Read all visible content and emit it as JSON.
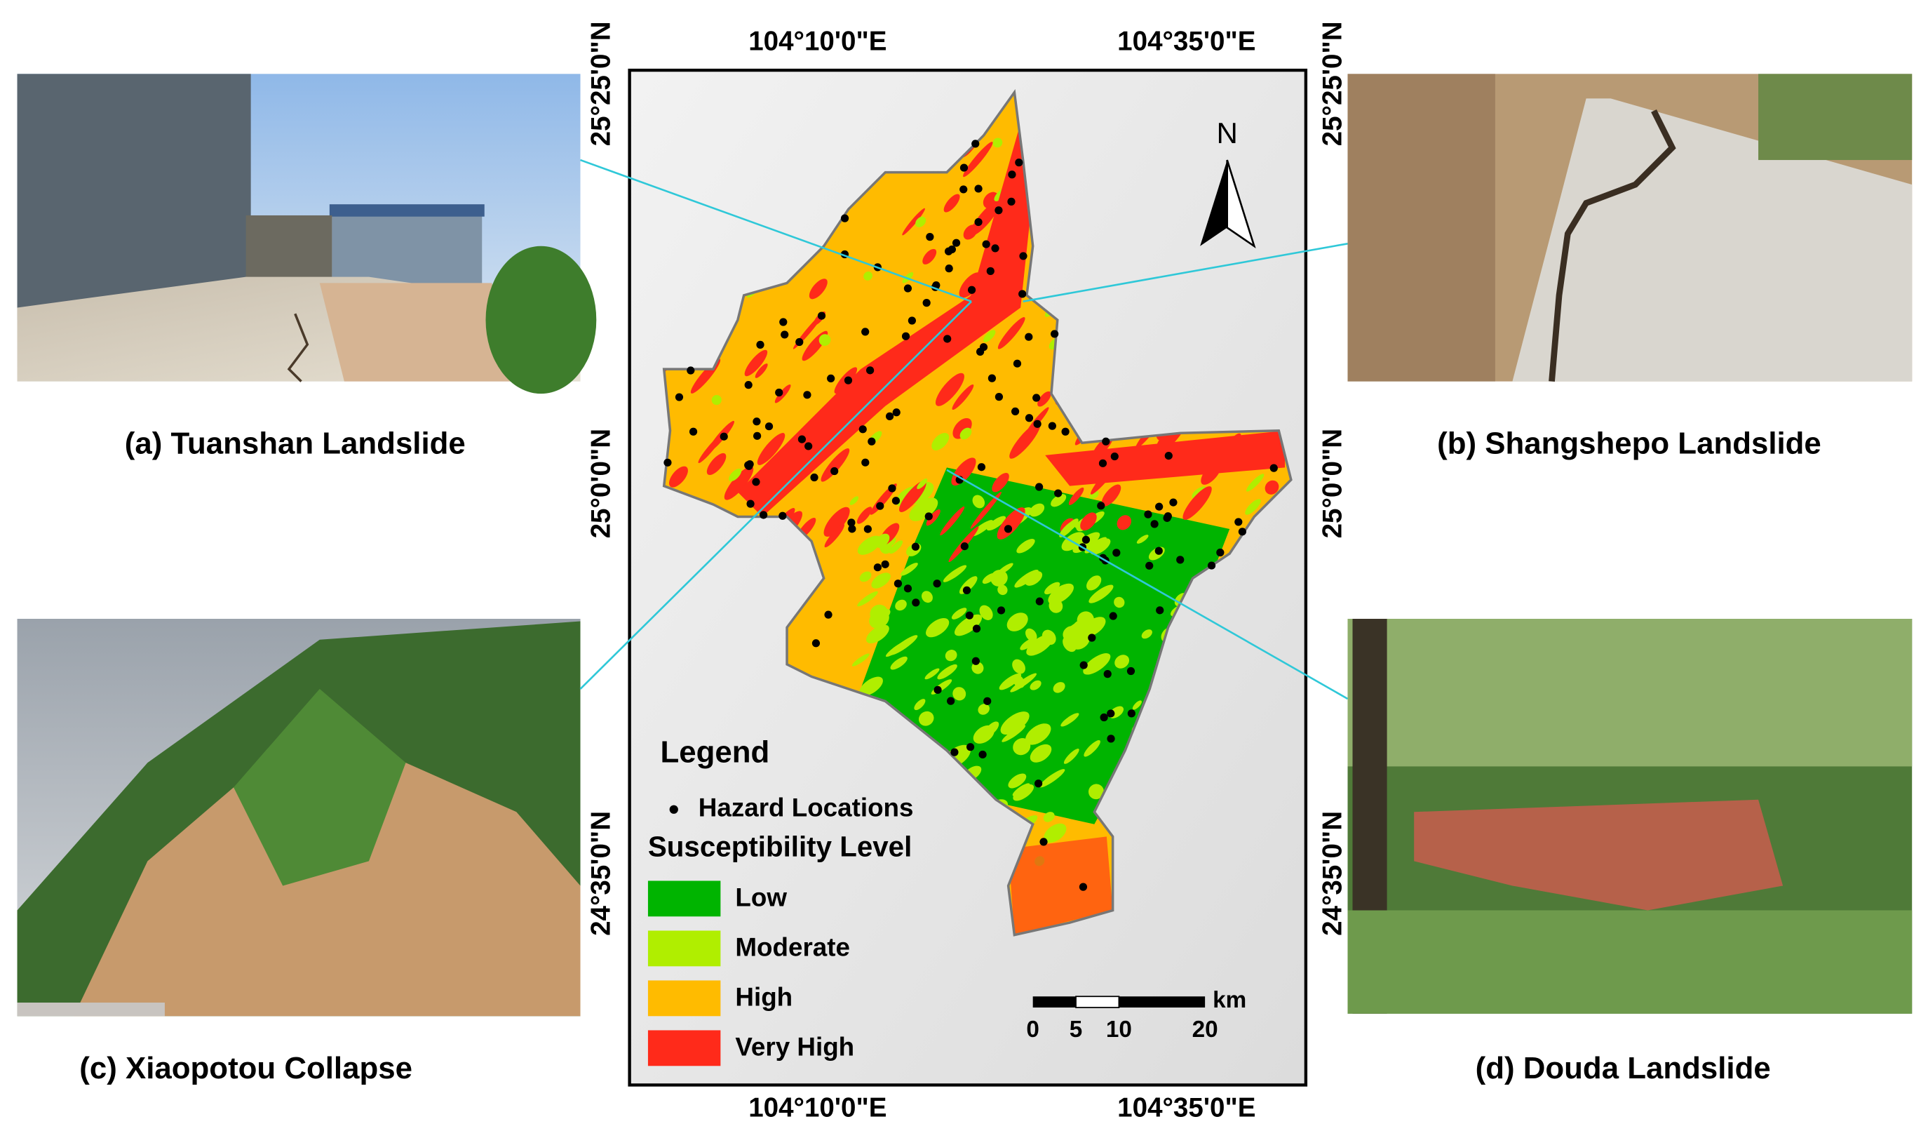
{
  "figure": {
    "photos": [
      {
        "caption": "(a) Tuanshan Landslide"
      },
      {
        "caption": "(b) Shangshepo Landslide"
      },
      {
        "caption": "(c) Xiaopotou Collapse"
      },
      {
        "caption": "(d) Douda Landslide"
      }
    ],
    "map": {
      "top_labels": [
        "104°10'0\"E",
        "104°35'0\"E"
      ],
      "bottom_labels": [
        "104°10'0\"E",
        "104°35'0\"E"
      ],
      "left_labels": [
        "25°25'0\"N",
        "25°0'0\"N",
        "24°35'0\"N"
      ],
      "right_labels": [
        "25°25'0\"N",
        "25°0'0\"N",
        "24°35'0\"N"
      ],
      "north": "N",
      "legend": {
        "title": "Legend",
        "points": "Hazard Locations",
        "level_title": "Susceptibility Level",
        "levels": [
          {
            "label": "Low",
            "color": "#00b400"
          },
          {
            "label": "Moderate",
            "color": "#b0ee00"
          },
          {
            "label": "High",
            "color": "#ffbb00"
          },
          {
            "label": "Very High",
            "color": "#ff2a1a"
          }
        ]
      },
      "scale": {
        "ticks": [
          0,
          5,
          10,
          20
        ],
        "unit": "km"
      }
    }
  }
}
